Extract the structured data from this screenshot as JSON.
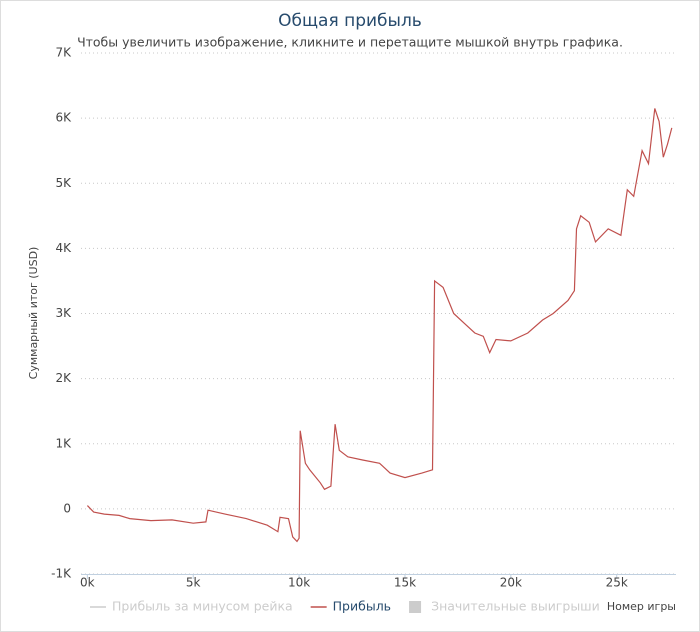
{
  "chart_data": {
    "type": "line",
    "title": "Общая прибыль",
    "subtitle": "Чтобы увеличить изображение, кликните и перетащите мышкой внутрь графика.",
    "x_label": "Номер игры",
    "y_label": "Суммарный итог (USD)",
    "x": [
      0,
      300,
      800,
      1500,
      2000,
      3000,
      4000,
      5000,
      5600,
      5700,
      6500,
      7500,
      8500,
      9000,
      9100,
      9500,
      9700,
      9900,
      10000,
      10050,
      10300,
      10500,
      11000,
      11200,
      11500,
      11700,
      11900,
      12300,
      13000,
      13800,
      14300,
      15000,
      15800,
      16300,
      16400,
      16800,
      17300,
      17800,
      18300,
      18700,
      19000,
      19300,
      20000,
      20800,
      21500,
      22000,
      22700,
      23000,
      23100,
      23300,
      23700,
      24000,
      24600,
      25200,
      25500,
      25800,
      26200,
      26500,
      26800,
      27000,
      27200,
      27400,
      27600
    ],
    "series": [
      {
        "name": "Прибыль",
        "color": "#c0504d",
        "values": [
          50,
          -50,
          -80,
          -100,
          -150,
          -180,
          -170,
          -220,
          -200,
          -20,
          -80,
          -150,
          -250,
          -350,
          -130,
          -150,
          -430,
          -500,
          -450,
          1200,
          700,
          600,
          400,
          300,
          350,
          1300,
          900,
          800,
          750,
          700,
          550,
          480,
          550,
          600,
          3500,
          3400,
          3000,
          2850,
          2700,
          2650,
          2400,
          2600,
          2580,
          2700,
          2900,
          3000,
          3200,
          3350,
          4300,
          4500,
          4400,
          4100,
          4300,
          4200,
          4900,
          4800,
          5500,
          5300,
          6150,
          5950,
          5400,
          5600,
          5850
        ]
      }
    ],
    "hidden_series": [
      {
        "name": "Прибыль за минусом рейка",
        "color": "#cccccc"
      },
      {
        "name": "Значительные выигрыши",
        "color": "#cccccc"
      }
    ],
    "xlim": [
      -300,
      27800
    ],
    "xticks": [
      {
        "value": 0,
        "label": "0k"
      },
      {
        "value": 5000,
        "label": "5k"
      },
      {
        "value": 10000,
        "label": "10k"
      },
      {
        "value": 15000,
        "label": "15k"
      },
      {
        "value": 20000,
        "label": "20k"
      },
      {
        "value": 25000,
        "label": "25k"
      }
    ],
    "ylim": [
      -1000,
      7000
    ],
    "yticks": [
      {
        "value": -1000,
        "label": "-1K"
      },
      0,
      {
        "value": 1000,
        "label": "1K"
      },
      {
        "value": 2000,
        "label": "2K"
      },
      {
        "value": 3000,
        "label": "3K"
      },
      {
        "value": 4000,
        "label": "4K"
      },
      {
        "value": 5000,
        "label": "5K"
      },
      {
        "value": 6000,
        "label": "6K"
      },
      {
        "value": 7000,
        "label": "7K"
      }
    ],
    "grid": true
  }
}
